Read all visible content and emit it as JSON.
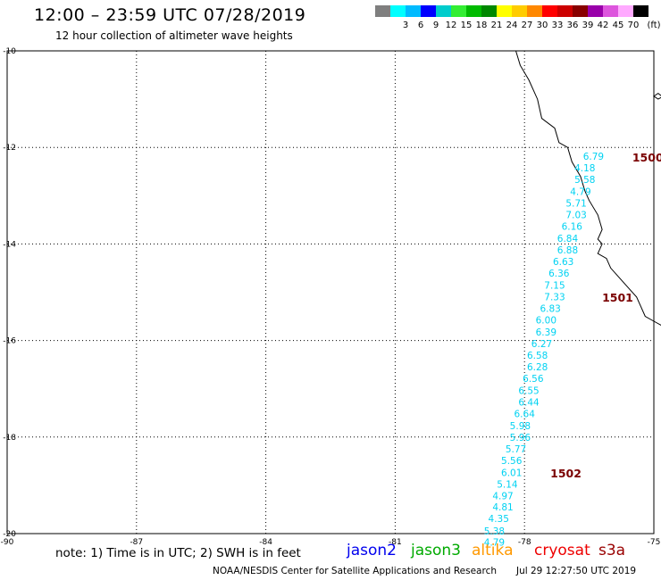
{
  "header": {
    "title": "12:00 – 23:59 UTC 07/28/2019",
    "subtitle": "12 hour collection of altimeter wave heights"
  },
  "legend": {
    "unit": "(ft)",
    "bins": [
      {
        "label": "",
        "color": "#7f7f7f"
      },
      {
        "label": "3",
        "color": "#00ffff"
      },
      {
        "label": "6",
        "color": "#00bbff"
      },
      {
        "label": "9",
        "color": "#0000ff"
      },
      {
        "label": "12",
        "color": "#00cccc"
      },
      {
        "label": "15",
        "color": "#33ee33"
      },
      {
        "label": "18",
        "color": "#00bb00"
      },
      {
        "label": "21",
        "color": "#008800"
      },
      {
        "label": "24",
        "color": "#ffff00"
      },
      {
        "label": "27",
        "color": "#ffcc00"
      },
      {
        "label": "30",
        "color": "#ff8800"
      },
      {
        "label": "33",
        "color": "#ff0000"
      },
      {
        "label": "36",
        "color": "#cc0000"
      },
      {
        "label": "39",
        "color": "#880000"
      },
      {
        "label": "42",
        "color": "#9900aa"
      },
      {
        "label": "45",
        "color": "#dd55dd"
      },
      {
        "label": "70",
        "color": "#ffaaff"
      },
      {
        "label": "",
        "color": "#000000"
      }
    ]
  },
  "map": {
    "lat_labels": [
      "-10",
      "-12",
      "-14",
      "-16",
      "-18",
      "-20"
    ],
    "lon_labels": [
      "-90",
      "-87",
      "-84",
      "-81",
      "-78",
      "-75"
    ],
    "lat_range": [
      -20,
      -10
    ],
    "lon_range": [
      -90,
      -75
    ],
    "grid": "dotted",
    "wave_color": "#00d2f2",
    "pass_color": "#7a0000",
    "wave_heights": [
      {
        "lon": -76.4,
        "lat": -12.18,
        "value": "6.79"
      },
      {
        "lon": -76.6,
        "lat": -12.42,
        "value": "4.18"
      },
      {
        "lon": -76.6,
        "lat": -12.66,
        "value": "5.58"
      },
      {
        "lon": -76.7,
        "lat": -12.91,
        "value": "4.79"
      },
      {
        "lon": -76.8,
        "lat": -13.15,
        "value": "5.71"
      },
      {
        "lon": -76.8,
        "lat": -13.39,
        "value": "7.03"
      },
      {
        "lon": -76.9,
        "lat": -13.63,
        "value": "6.16"
      },
      {
        "lon": -77.0,
        "lat": -13.88,
        "value": "6.84"
      },
      {
        "lon": -77.0,
        "lat": -14.12,
        "value": "6.88"
      },
      {
        "lon": -77.1,
        "lat": -14.36,
        "value": "6.63"
      },
      {
        "lon": -77.2,
        "lat": -14.6,
        "value": "6.36"
      },
      {
        "lon": -77.3,
        "lat": -14.85,
        "value": "7.15"
      },
      {
        "lon": -77.3,
        "lat": -15.09,
        "value": "7.33"
      },
      {
        "lon": -77.4,
        "lat": -15.33,
        "value": "6.83"
      },
      {
        "lon": -77.5,
        "lat": -15.57,
        "value": "6.00"
      },
      {
        "lon": -77.5,
        "lat": -15.82,
        "value": "6.39"
      },
      {
        "lon": -77.6,
        "lat": -16.06,
        "value": "6.27"
      },
      {
        "lon": -77.7,
        "lat": -16.3,
        "value": "6.58"
      },
      {
        "lon": -77.7,
        "lat": -16.54,
        "value": "6.28"
      },
      {
        "lon": -77.8,
        "lat": -16.78,
        "value": "6.56"
      },
      {
        "lon": -77.9,
        "lat": -17.03,
        "value": "6.55"
      },
      {
        "lon": -77.9,
        "lat": -17.27,
        "value": "6.44"
      },
      {
        "lon": -78.0,
        "lat": -17.51,
        "value": "6.64"
      },
      {
        "lon": -78.1,
        "lat": -17.76,
        "value": "5.98"
      },
      {
        "lon": -78.1,
        "lat": -18.0,
        "value": "5.96"
      },
      {
        "lon": -78.2,
        "lat": -18.24,
        "value": "5.77"
      },
      {
        "lon": -78.3,
        "lat": -18.48,
        "value": "5.56"
      },
      {
        "lon": -78.3,
        "lat": -18.73,
        "value": "6.01"
      },
      {
        "lon": -78.4,
        "lat": -18.97,
        "value": "5.14"
      },
      {
        "lon": -78.5,
        "lat": -19.21,
        "value": "4.97"
      },
      {
        "lon": -78.5,
        "lat": -19.45,
        "value": "4.81"
      },
      {
        "lon": -78.6,
        "lat": -19.69,
        "value": "4.35"
      },
      {
        "lon": -78.7,
        "lat": -19.94,
        "value": "5.38"
      },
      {
        "lon": -78.7,
        "lat": -20.18,
        "value": "4.79"
      }
    ],
    "pass_labels": [
      {
        "lon": -75.5,
        "lat": -12.22,
        "value": "1500"
      },
      {
        "lon": -76.2,
        "lat": -15.12,
        "value": "1501"
      },
      {
        "lon": -77.4,
        "lat": -18.76,
        "value": "1502"
      }
    ],
    "coastline": [
      [
        -78.2,
        -10.0
      ],
      [
        -78.1,
        -10.3
      ],
      [
        -77.9,
        -10.6
      ],
      [
        -77.7,
        -11.0
      ],
      [
        -77.6,
        -11.4
      ],
      [
        -77.3,
        -11.6
      ],
      [
        -77.2,
        -11.9
      ],
      [
        -77.0,
        -12.0
      ],
      [
        -76.9,
        -12.3
      ],
      [
        -76.7,
        -12.6
      ],
      [
        -76.6,
        -12.9
      ],
      [
        -76.5,
        -13.1
      ],
      [
        -76.3,
        -13.4
      ],
      [
        -76.2,
        -13.7
      ],
      [
        -76.3,
        -13.9
      ],
      [
        -76.2,
        -14.0
      ],
      [
        -76.3,
        -14.2
      ],
      [
        -76.1,
        -14.3
      ],
      [
        -76.0,
        -14.5
      ],
      [
        -75.8,
        -14.7
      ],
      [
        -75.6,
        -14.9
      ],
      [
        -75.4,
        -15.1
      ],
      [
        -75.3,
        -15.3
      ],
      [
        -75.2,
        -15.5
      ],
      [
        -75.0,
        -15.6
      ],
      [
        -74.8,
        -15.7
      ]
    ],
    "island": [
      [
        -75.0,
        -10.94
      ],
      [
        -74.9,
        -10.88
      ],
      [
        -74.8,
        -10.95
      ],
      [
        -74.9,
        -11.0
      ],
      [
        -75.0,
        -10.94
      ]
    ]
  },
  "footer": {
    "note": "note: 1) Time is in UTC; 2) SWH is in feet",
    "satellites": [
      {
        "name": "jason2",
        "color": "#0000ee"
      },
      {
        "name": "jason3",
        "color": "#00aa00"
      },
      {
        "name": "altika",
        "color": "#ff9900"
      },
      {
        "name": "cryosat",
        "color": "#ee0000"
      },
      {
        "name": "s3a",
        "color": "#990000"
      }
    ],
    "credit": "NOAA/NESDIS Center for Satellite Applications and Research",
    "timestamp": "Jul 29 12:27:50 UTC 2019"
  }
}
